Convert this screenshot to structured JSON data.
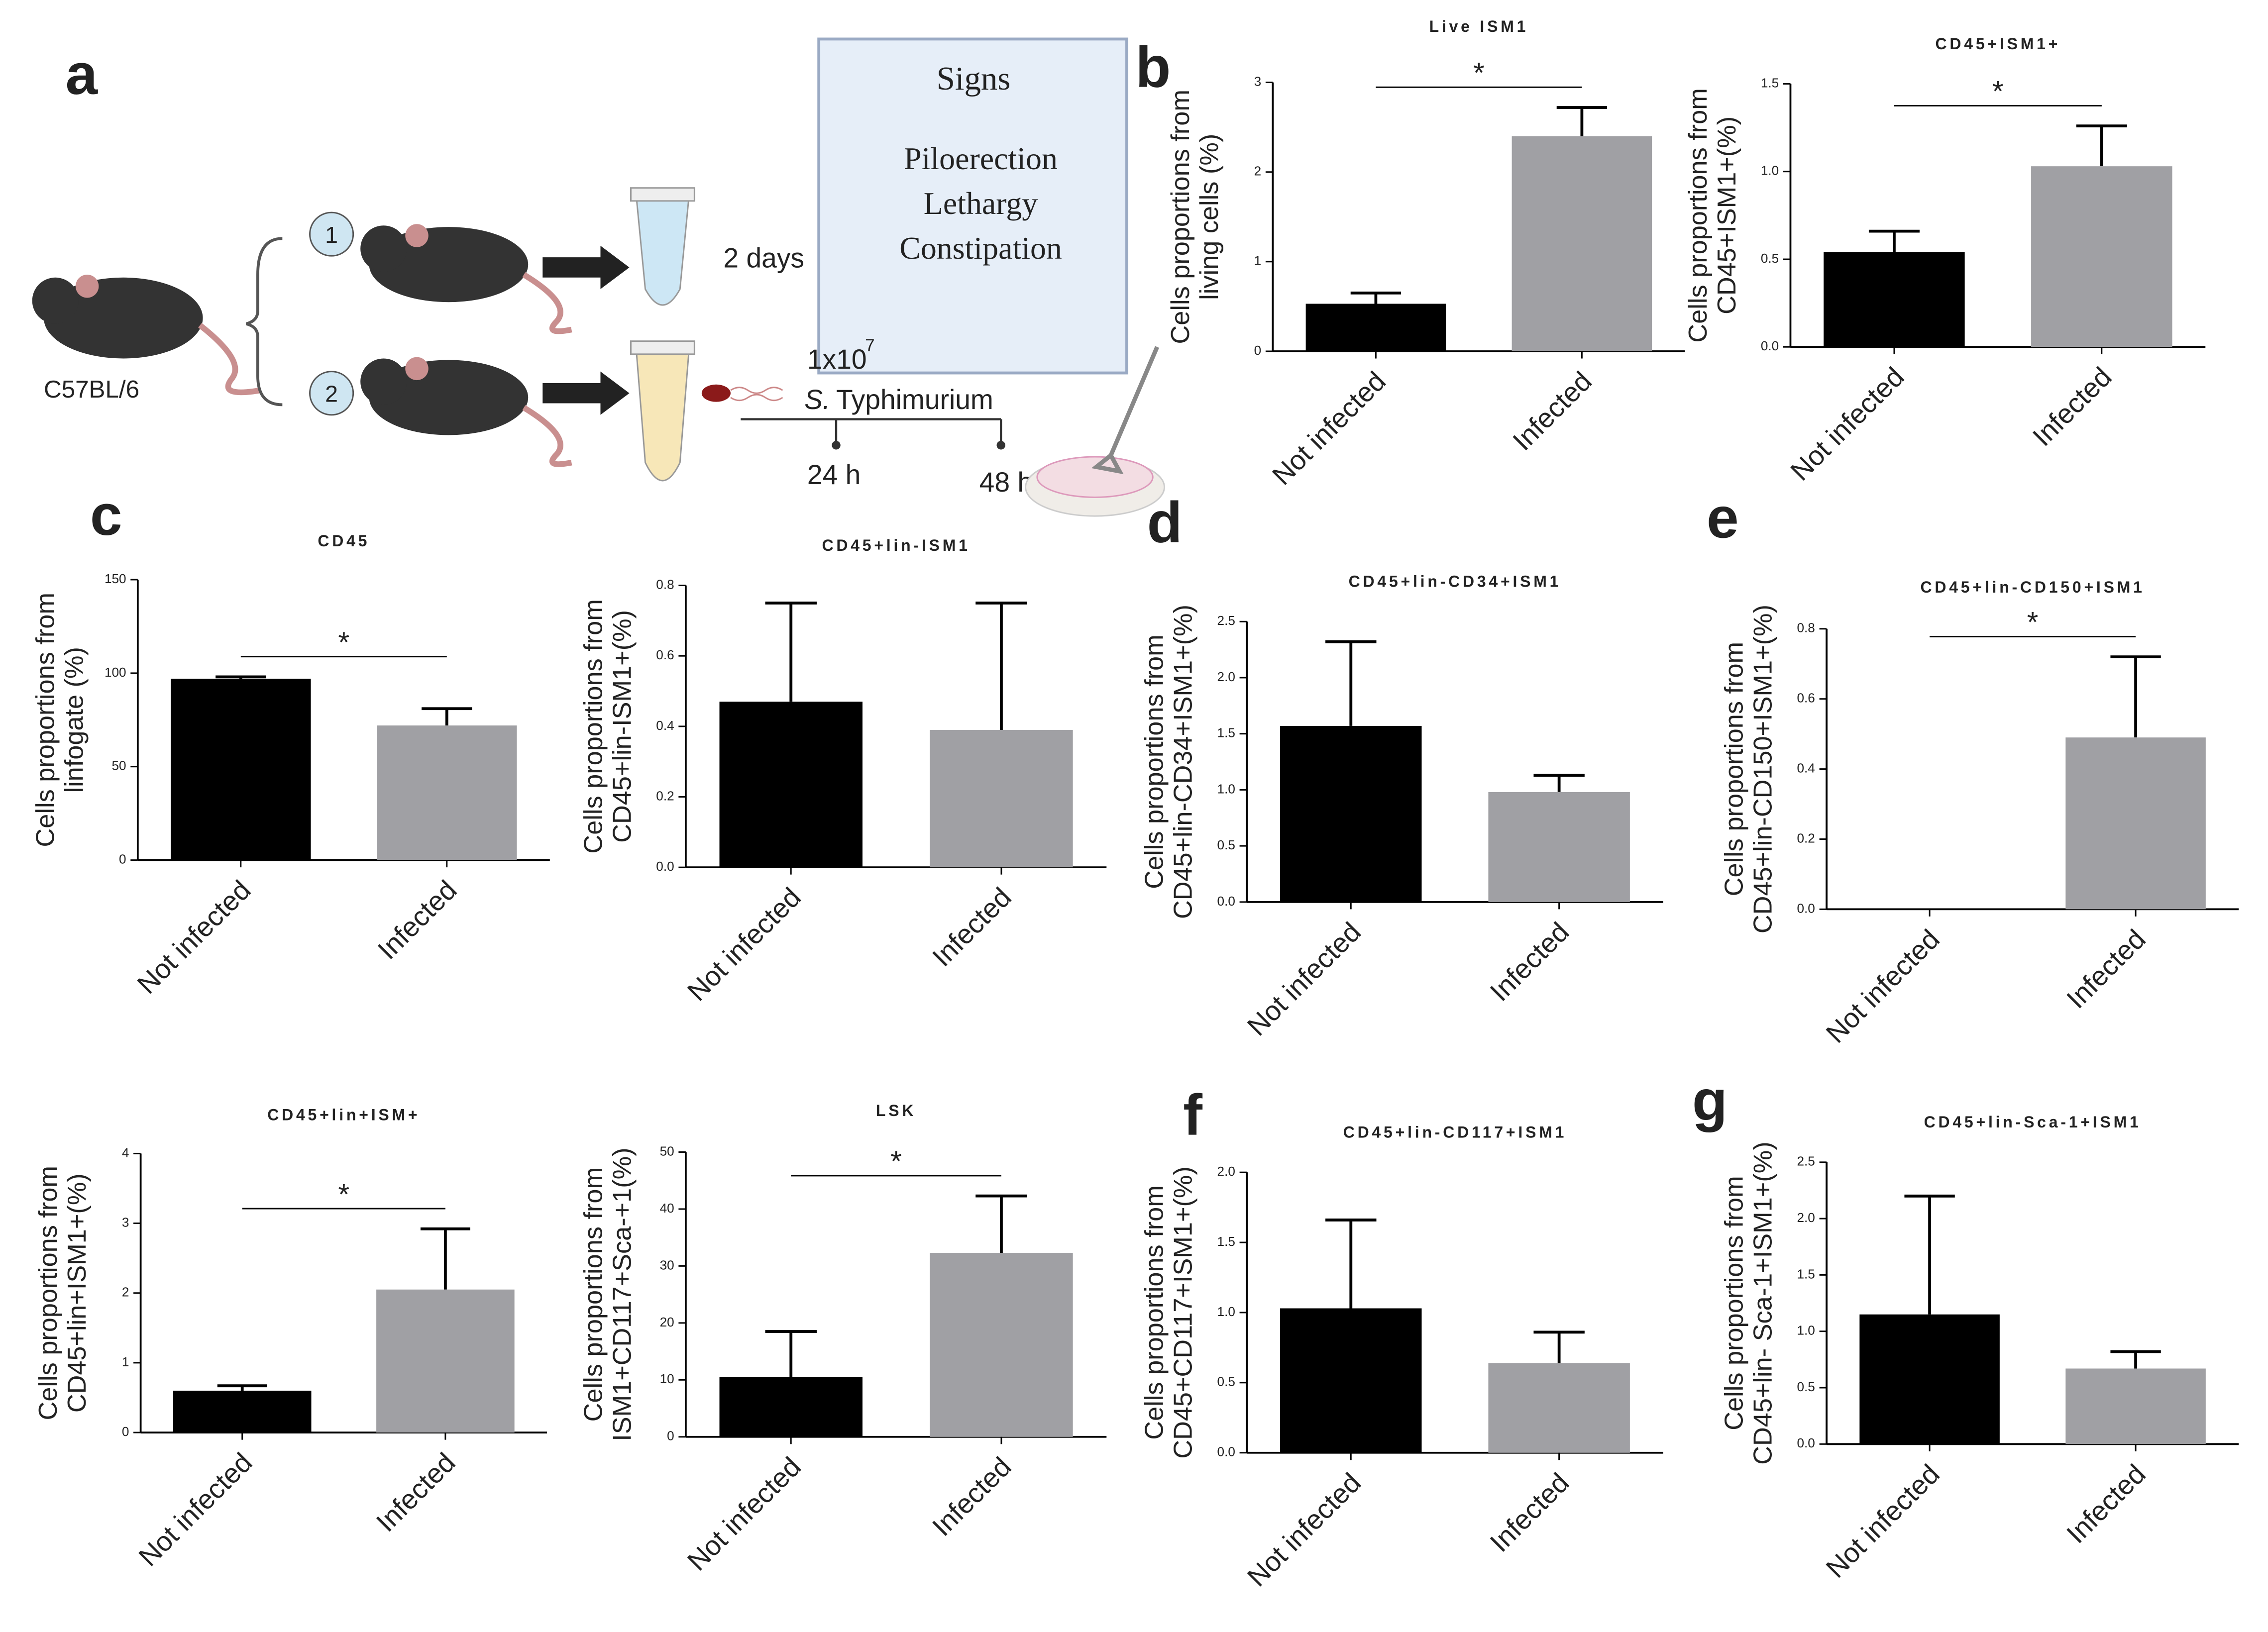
{
  "panel_a": {
    "label": "a",
    "strain": "C57BL/6",
    "group_1": "1",
    "group_2": "2",
    "duration": "2 days",
    "signs_title": "Signs",
    "signs": [
      "Piloerection",
      "Lethargy",
      "Constipation"
    ],
    "dose": "1x10",
    "dose_exponent": "7",
    "species": "S.",
    "serovar": "Typhimurium",
    "time_1": "24 h",
    "time_2": "48 h"
  },
  "chart_data": [
    {
      "type": "bar",
      "panel_label": "b",
      "title": "Live ISM1",
      "ylabel": [
        "Cells proportions from",
        "living cells (%)"
      ],
      "categories": [
        "Not infected",
        "Infected"
      ],
      "values": [
        0.53,
        2.4
      ],
      "errors": [
        0.12,
        0.32
      ],
      "colors": [
        "#000000",
        "#a0a0a4"
      ],
      "ylim": [
        0,
        3
      ],
      "yticks": [
        0,
        1,
        2,
        3
      ],
      "annotation": "*"
    },
    {
      "type": "bar",
      "title": "CD45+ISM1+",
      "ylabel": [
        "Cells proportions from",
        "CD45+ISM1+(%)"
      ],
      "categories": [
        "Not infected",
        "Infected"
      ],
      "values": [
        0.54,
        1.03
      ],
      "errors": [
        0.12,
        0.23
      ],
      "colors": [
        "#000000",
        "#a0a0a4"
      ],
      "ylim": [
        0,
        1.5
      ],
      "yticks": [
        {
          "value": 0,
          "label": "0.0"
        },
        0.5,
        {
          "value": 1,
          "label": "1.0"
        },
        1.5
      ],
      "annotation": "*"
    },
    {
      "type": "bar",
      "panel_label": "c",
      "title": "CD45",
      "ylabel": [
        "Cells proportions from",
        "linfogate (%)"
      ],
      "categories": [
        "Not infected",
        "Infected"
      ],
      "values": [
        97,
        72
      ],
      "errors": [
        1,
        9
      ],
      "colors": [
        "#000000",
        "#a0a0a4"
      ],
      "ylim": [
        0,
        150
      ],
      "yticks": [
        0,
        50,
        100,
        150
      ],
      "annotation": "*"
    },
    {
      "type": "bar",
      "title": "CD45+lin-ISM1",
      "ylabel": [
        "Cells proportions from",
        "CD45+lin-ISM1+(%)"
      ],
      "categories": [
        "Not infected",
        "Infected"
      ],
      "values": [
        0.47,
        0.39
      ],
      "errors": [
        0.28,
        0.36
      ],
      "colors": [
        "#000000",
        "#a0a0a4"
      ],
      "ylim": [
        0,
        0.8
      ],
      "yticks": [
        {
          "value": 0,
          "label": "0.0"
        },
        0.2,
        0.4,
        0.6,
        0.8
      ]
    },
    {
      "type": "bar",
      "panel_label": "d",
      "title": "CD45+lin-CD34+ISM1",
      "ylabel": [
        "Cells proportions from",
        "CD45+lin-CD34+ISM1+(%)"
      ],
      "categories": [
        "Not infected",
        "Infected"
      ],
      "values": [
        1.57,
        0.98
      ],
      "errors": [
        0.75,
        0.15
      ],
      "colors": [
        "#000000",
        "#a0a0a4"
      ],
      "ylim": [
        0,
        2.5
      ],
      "yticks": [
        {
          "value": 0,
          "label": "0.0"
        },
        0.5,
        {
          "value": 1,
          "label": "1.0"
        },
        1.5,
        {
          "value": 2,
          "label": "2.0"
        },
        2.5
      ]
    },
    {
      "type": "bar",
      "panel_label": "e",
      "title": "CD45+lin-CD150+ISM1",
      "ylabel": [
        "Cells proportions from",
        "CD45+lin-CD150+ISM1+(%)"
      ],
      "categories": [
        "Not infected",
        "Infected"
      ],
      "values": [
        0,
        0.49
      ],
      "errors": [
        0,
        0.23
      ],
      "colors": [
        "#000000",
        "#a0a0a4"
      ],
      "ylim": [
        0,
        0.8
      ],
      "yticks": [
        {
          "value": 0,
          "label": "0.0"
        },
        0.2,
        0.4,
        0.6,
        0.8
      ],
      "annotation": "*"
    },
    {
      "type": "bar",
      "title": "CD45+lin+ISM+",
      "ylabel": [
        "Cells proportions from",
        "CD45+lin+ISM1+(%)"
      ],
      "categories": [
        "Not infected",
        "Infected"
      ],
      "values": [
        0.6,
        2.05
      ],
      "errors": [
        0.07,
        0.87
      ],
      "colors": [
        "#000000",
        "#a0a0a4"
      ],
      "ylim": [
        0,
        4
      ],
      "yticks": [
        0,
        1,
        2,
        3,
        4
      ],
      "annotation": "*"
    },
    {
      "type": "bar",
      "title": "LSK",
      "ylabel": [
        "Cells proportions from",
        "ISM1+CD117+Sca-+1(%)"
      ],
      "categories": [
        "Not infected",
        "Infected"
      ],
      "values": [
        10.5,
        32.3
      ],
      "errors": [
        8,
        10
      ],
      "colors": [
        "#000000",
        "#a0a0a4"
      ],
      "ylim": [
        0,
        50
      ],
      "yticks": [
        0,
        10,
        20,
        30,
        40,
        50
      ],
      "annotation": "*"
    },
    {
      "type": "bar",
      "panel_label": "f",
      "title": "CD45+lin-CD117+ISM1",
      "ylabel": [
        "Cells proportions from",
        "CD45+CD117+ISM1+(%)"
      ],
      "categories": [
        "Not infected",
        "Infected"
      ],
      "values": [
        1.03,
        0.64
      ],
      "errors": [
        0.63,
        0.22
      ],
      "colors": [
        "#000000",
        "#a0a0a4"
      ],
      "ylim": [
        0,
        2
      ],
      "yticks": [
        {
          "value": 0,
          "label": "0.0"
        },
        0.5,
        {
          "value": 1,
          "label": "1.0"
        },
        1.5,
        {
          "value": 2,
          "label": "2.0"
        }
      ]
    },
    {
      "type": "bar",
      "panel_label": "g",
      "title": "CD45+lin-Sca-1+ISM1",
      "ylabel": [
        "Cells proportions from",
        "CD45+lin- Sca-1+ISM1+(%)"
      ],
      "categories": [
        "Not infected",
        "Infected"
      ],
      "values": [
        1.15,
        0.67
      ],
      "errors": [
        1.05,
        0.15
      ],
      "colors": [
        "#000000",
        "#a0a0a4"
      ],
      "ylim": [
        0,
        2.5
      ],
      "yticks": [
        {
          "value": 0,
          "label": "0.0"
        },
        0.5,
        {
          "value": 1,
          "label": "1.0"
        },
        1.5,
        {
          "value": 2,
          "label": "2.0"
        },
        2.5
      ]
    }
  ]
}
